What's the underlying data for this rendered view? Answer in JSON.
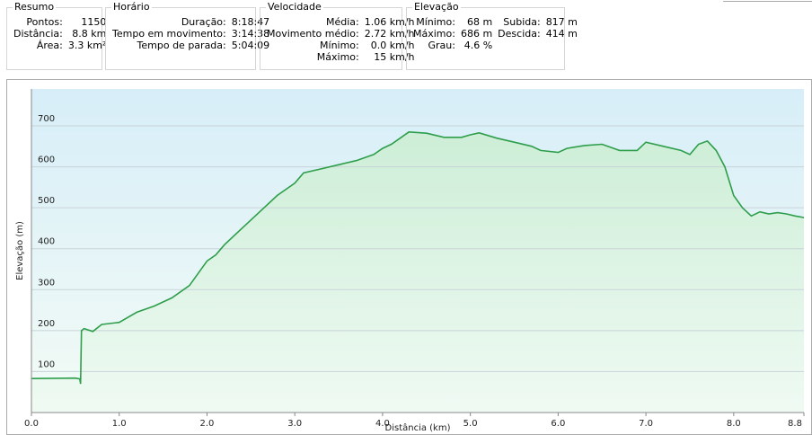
{
  "panels": [
    {
      "title": "Resumo",
      "rows": [
        [
          "Pontos:",
          "1150"
        ],
        [
          "Distância:",
          "8.8 km"
        ],
        [
          "Área:",
          "3.3 km²"
        ]
      ]
    },
    {
      "title": "Horário",
      "rows": [
        [
          "Duração:",
          "8:18:47"
        ],
        [
          "Tempo em movimento:",
          "3:14:38"
        ],
        [
          "Tempo de parada:",
          "5:04:09"
        ]
      ]
    },
    {
      "title": "Velocidade",
      "rows": [
        [
          "Média:",
          "1.06 km/h"
        ],
        [
          "Movimento médio:",
          "2.72 km/h"
        ],
        [
          "Mínimo:",
          "0.0 km/h"
        ],
        [
          "Máximo:",
          "15 km/h"
        ]
      ]
    },
    {
      "title": "Elevação",
      "rows": [
        [
          "Mínimo:",
          "68 m",
          "Subida:",
          "817 m"
        ],
        [
          "Máximo:",
          "686 m",
          "Descida:",
          "414 m"
        ],
        [
          "Grau:",
          "4.6 %"
        ]
      ]
    }
  ],
  "chart_data": {
    "type": "area",
    "ylabel": "Elevação (m)",
    "xlabel": "Distância (km)",
    "x": [
      0,
      0.5,
      0.55,
      0.56,
      0.57,
      0.6,
      0.7,
      0.8,
      1.0,
      1.2,
      1.4,
      1.6,
      1.8,
      2.0,
      2.1,
      2.2,
      2.4,
      2.6,
      2.8,
      3.0,
      3.1,
      3.3,
      3.5,
      3.7,
      3.9,
      4.0,
      4.1,
      4.2,
      4.3,
      4.5,
      4.7,
      4.9,
      5.0,
      5.1,
      5.3,
      5.5,
      5.7,
      5.8,
      6.0,
      6.1,
      6.3,
      6.5,
      6.7,
      6.9,
      7.0,
      7.2,
      7.4,
      7.5,
      7.6,
      7.7,
      7.8,
      7.9,
      8.0,
      8.1,
      8.2,
      8.3,
      8.4,
      8.5,
      8.6,
      8.7,
      8.8
    ],
    "values": [
      83,
      84,
      82,
      70,
      200,
      205,
      198,
      215,
      220,
      245,
      260,
      280,
      310,
      370,
      385,
      410,
      450,
      490,
      530,
      560,
      585,
      595,
      605,
      615,
      630,
      645,
      655,
      670,
      685,
      682,
      672,
      672,
      678,
      683,
      670,
      660,
      650,
      640,
      635,
      645,
      652,
      655,
      640,
      640,
      660,
      650,
      640,
      630,
      655,
      663,
      640,
      600,
      530,
      500,
      480,
      490,
      485,
      488,
      485,
      480,
      476
    ],
    "color": "#2e9e4a",
    "xlim": [
      0,
      8.8
    ],
    "ylim": [
      0,
      790
    ],
    "xticks": [
      {
        "value": 0,
        "label": "0.0"
      },
      {
        "value": 1,
        "label": "1.0"
      },
      {
        "value": 2,
        "label": "2.0"
      },
      {
        "value": 3,
        "label": "3.0"
      },
      {
        "value": 4,
        "label": "4.0"
      },
      {
        "value": 5,
        "label": "5.0"
      },
      {
        "value": 6,
        "label": "6.0"
      },
      {
        "value": 7,
        "label": "7.0"
      },
      {
        "value": 8,
        "label": "8.0"
      },
      8.8
    ],
    "yticks": [
      100,
      200,
      300,
      400,
      500,
      600,
      700
    ],
    "grid": true
  }
}
